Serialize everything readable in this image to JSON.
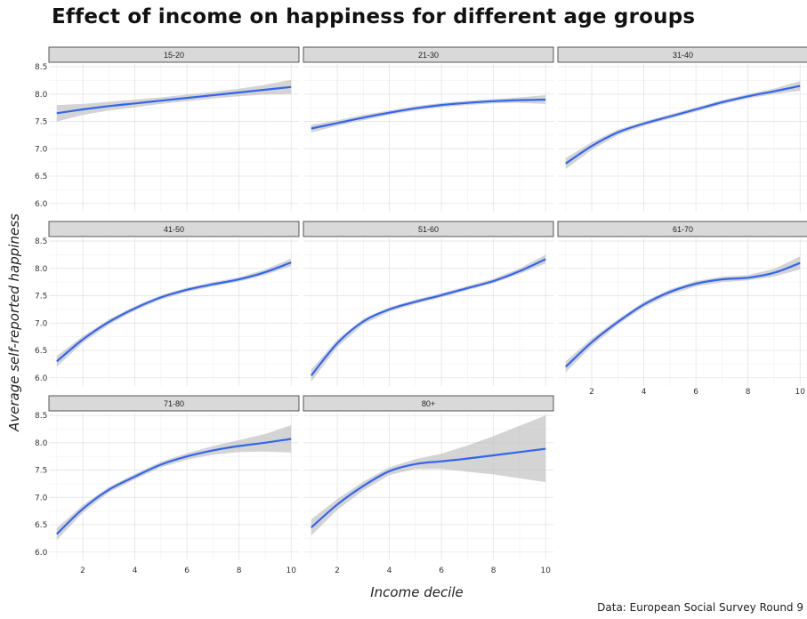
{
  "title": "Effect of income on happiness for different age groups",
  "caption": "Data: European Social Survey Round 9",
  "chart_data": {
    "type": "line",
    "title": "Effect of income on happiness for different age groups",
    "xlabel": "Income decile",
    "ylabel": "Average self-reported happiness",
    "xlim": [
      0.7,
      10.3
    ],
    "ylim": [
      5.85,
      8.55
    ],
    "x_ticks": [
      2,
      4,
      6,
      8,
      10
    ],
    "y_ticks": [
      6.0,
      6.5,
      7.0,
      7.5,
      8.0,
      8.5
    ],
    "grid": true,
    "x": [
      1,
      2,
      3,
      4,
      5,
      6,
      7,
      8,
      9,
      10
    ],
    "panels": [
      {
        "name": "15-20",
        "y": [
          7.65,
          7.72,
          7.78,
          7.83,
          7.88,
          7.93,
          7.98,
          8.03,
          8.08,
          8.13
        ],
        "lower": [
          7.5,
          7.62,
          7.7,
          7.76,
          7.82,
          7.87,
          7.92,
          7.96,
          7.99,
          8.0
        ],
        "upper": [
          7.8,
          7.82,
          7.86,
          7.9,
          7.94,
          7.99,
          8.04,
          8.1,
          8.17,
          8.26
        ]
      },
      {
        "name": "21-30",
        "y": [
          7.37,
          7.47,
          7.57,
          7.66,
          7.74,
          7.8,
          7.84,
          7.87,
          7.89,
          7.9
        ],
        "lower": [
          7.3,
          7.42,
          7.52,
          7.62,
          7.7,
          7.76,
          7.8,
          7.83,
          7.84,
          7.82
        ],
        "upper": [
          7.44,
          7.52,
          7.62,
          7.7,
          7.78,
          7.84,
          7.88,
          7.91,
          7.94,
          7.98
        ]
      },
      {
        "name": "31-40",
        "y": [
          6.73,
          7.05,
          7.3,
          7.46,
          7.59,
          7.72,
          7.85,
          7.96,
          8.05,
          8.15
        ],
        "lower": [
          6.63,
          6.98,
          7.25,
          7.42,
          7.55,
          7.68,
          7.81,
          7.92,
          8.0,
          8.06
        ],
        "upper": [
          6.83,
          7.12,
          7.35,
          7.5,
          7.63,
          7.76,
          7.89,
          8.0,
          8.1,
          8.24
        ]
      },
      {
        "name": "41-50",
        "y": [
          6.3,
          6.7,
          7.02,
          7.27,
          7.47,
          7.61,
          7.71,
          7.8,
          7.93,
          8.11
        ],
        "lower": [
          6.2,
          6.64,
          6.97,
          7.23,
          7.43,
          7.57,
          7.67,
          7.76,
          7.88,
          8.04
        ],
        "upper": [
          6.4,
          6.76,
          7.07,
          7.31,
          7.51,
          7.65,
          7.75,
          7.84,
          7.98,
          8.18
        ]
      },
      {
        "name": "51-60",
        "y": [
          6.04,
          6.63,
          7.03,
          7.25,
          7.39,
          7.51,
          7.64,
          7.77,
          7.95,
          8.17
        ],
        "lower": [
          5.93,
          6.56,
          6.98,
          7.21,
          7.35,
          7.47,
          7.6,
          7.73,
          7.9,
          8.09
        ],
        "upper": [
          6.15,
          6.7,
          7.08,
          7.29,
          7.43,
          7.55,
          7.68,
          7.81,
          8.0,
          8.25
        ]
      },
      {
        "name": "61-70",
        "y": [
          6.2,
          6.65,
          7.02,
          7.34,
          7.57,
          7.72,
          7.8,
          7.83,
          7.92,
          8.1
        ],
        "lower": [
          6.1,
          6.58,
          6.97,
          7.29,
          7.52,
          7.67,
          7.75,
          7.78,
          7.85,
          7.98
        ],
        "upper": [
          6.3,
          6.72,
          7.07,
          7.39,
          7.62,
          7.77,
          7.85,
          7.88,
          7.99,
          8.22
        ]
      },
      {
        "name": "71-80",
        "y": [
          6.33,
          6.79,
          7.14,
          7.38,
          7.6,
          7.75,
          7.86,
          7.94,
          8.0,
          8.07
        ],
        "lower": [
          6.22,
          6.72,
          7.09,
          7.33,
          7.55,
          7.69,
          7.78,
          7.83,
          7.84,
          7.82
        ],
        "upper": [
          6.44,
          6.86,
          7.19,
          7.43,
          7.65,
          7.81,
          7.94,
          8.05,
          8.16,
          8.32
        ]
      },
      {
        "name": "80+",
        "y": [
          6.45,
          6.87,
          7.21,
          7.48,
          7.61,
          7.66,
          7.71,
          7.77,
          7.83,
          7.89
        ],
        "lower": [
          6.3,
          6.77,
          7.13,
          7.41,
          7.52,
          7.52,
          7.47,
          7.42,
          7.35,
          7.28
        ],
        "upper": [
          6.6,
          6.97,
          7.29,
          7.55,
          7.7,
          7.8,
          7.95,
          8.12,
          8.31,
          8.5
        ]
      }
    ]
  }
}
